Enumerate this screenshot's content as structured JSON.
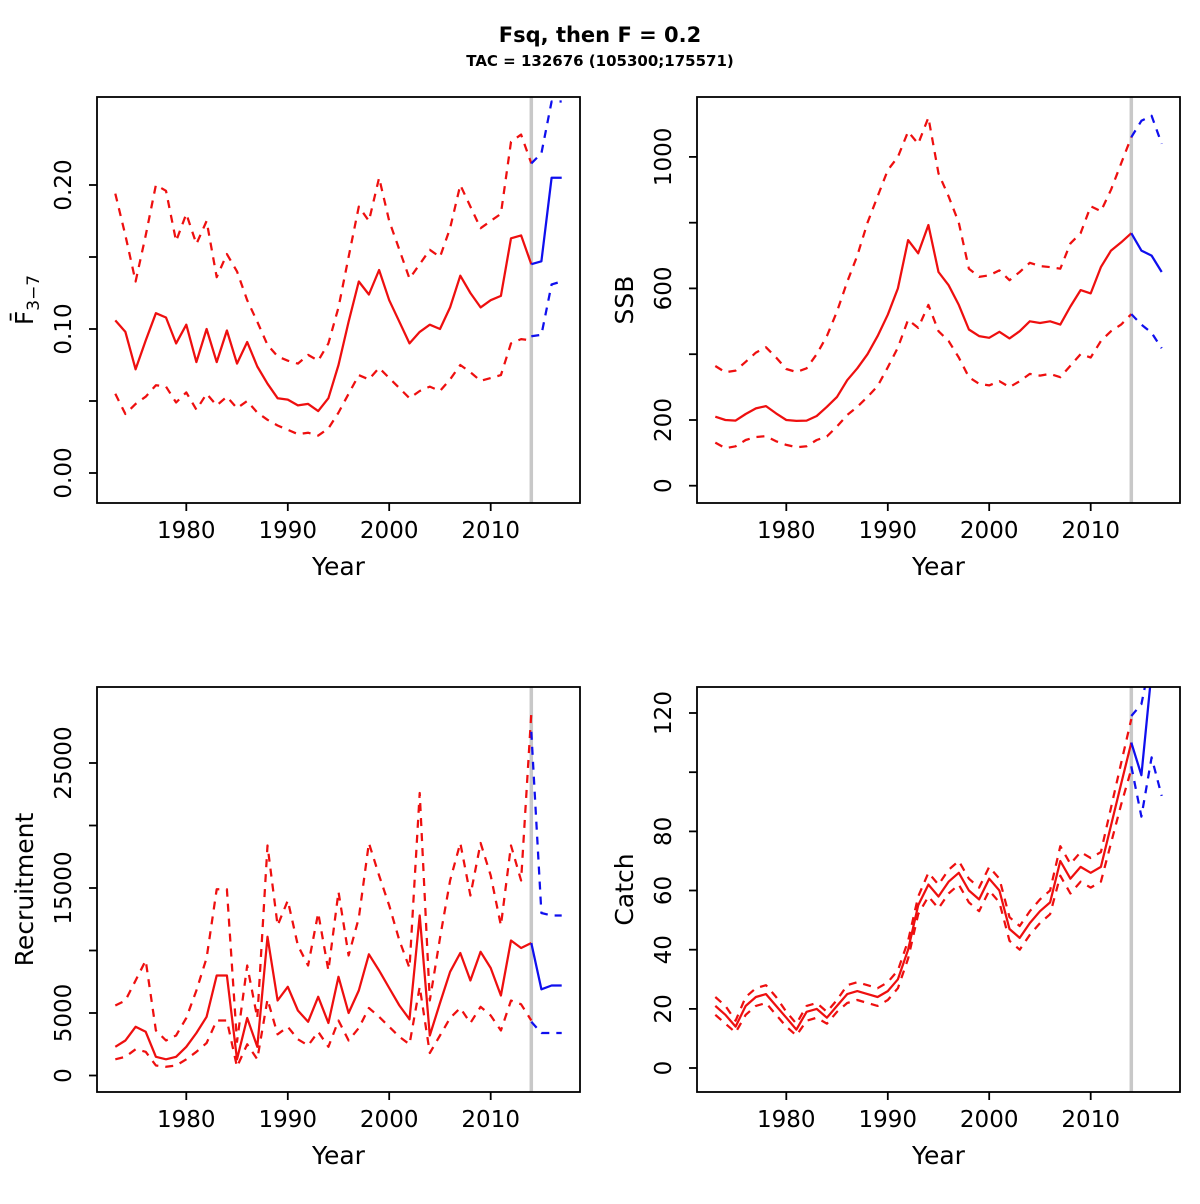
{
  "header": {
    "title": "Fsq, then F = 0.2",
    "subtitle": "TAC = 132676 (105300;175571)"
  },
  "colors": {
    "historical": "#ee0f0f",
    "projection": "#0f0fee",
    "divider": "#c8c8c8",
    "axis": "#000000",
    "background": "#ffffff"
  },
  "chart_data": [
    {
      "name": "fbar",
      "type": "line",
      "ylabel": "F̄",
      "ylabel_sub": "3−7",
      "xlabel": "Year",
      "x_ticks": [
        1980,
        1990,
        2000,
        2010
      ],
      "xlim": [
        1971.2,
        2018.8
      ],
      "ylim": [
        -0.0208,
        0.2611
      ],
      "divider_year": 2014,
      "grid": false,
      "legend": "none",
      "y_ticks": [
        {
          "v": 0.0,
          "label": "0.00"
        },
        {
          "v": 0.05,
          "label": ""
        },
        {
          "v": 0.1,
          "label": "0.10"
        },
        {
          "v": 0.15,
          "label": ""
        },
        {
          "v": 0.2,
          "label": "0.20"
        }
      ],
      "series": [
        {
          "name": "fbar-median-historical",
          "role": "median",
          "period": "historical",
          "style": "solid",
          "color": "historical",
          "start_year": 1973,
          "values": [
            0.106,
            0.098,
            0.072,
            0.092,
            0.111,
            0.108,
            0.09,
            0.103,
            0.077,
            0.1,
            0.077,
            0.099,
            0.076,
            0.091,
            0.074,
            0.062,
            0.052,
            0.051,
            0.047,
            0.048,
            0.043,
            0.052,
            0.075,
            0.105,
            0.133,
            0.124,
            0.141,
            0.12,
            0.105,
            0.09,
            0.098,
            0.103,
            0.1,
            0.115,
            0.137,
            0.125,
            0.115,
            0.12,
            0.123,
            0.163,
            0.165,
            0.145
          ]
        },
        {
          "name": "fbar-upper-ci-historical",
          "role": "upper-ci",
          "period": "historical",
          "style": "dashed",
          "color": "historical",
          "start_year": 1973,
          "values": [
            0.194,
            0.165,
            0.133,
            0.165,
            0.2,
            0.196,
            0.161,
            0.18,
            0.159,
            0.175,
            0.136,
            0.152,
            0.14,
            0.12,
            0.105,
            0.089,
            0.081,
            0.078,
            0.076,
            0.082,
            0.078,
            0.09,
            0.115,
            0.15,
            0.185,
            0.175,
            0.205,
            0.175,
            0.155,
            0.135,
            0.145,
            0.155,
            0.15,
            0.17,
            0.2,
            0.185,
            0.17,
            0.175,
            0.18,
            0.23,
            0.235,
            0.215
          ]
        },
        {
          "name": "fbar-lower-ci-historical",
          "role": "lower-ci",
          "period": "historical",
          "style": "dashed",
          "color": "historical",
          "start_year": 1973,
          "values": [
            0.055,
            0.041,
            0.048,
            0.053,
            0.061,
            0.06,
            0.049,
            0.056,
            0.044,
            0.055,
            0.047,
            0.053,
            0.045,
            0.05,
            0.042,
            0.037,
            0.033,
            0.03,
            0.027,
            0.028,
            0.026,
            0.031,
            0.042,
            0.055,
            0.068,
            0.065,
            0.073,
            0.066,
            0.059,
            0.052,
            0.057,
            0.06,
            0.057,
            0.065,
            0.075,
            0.07,
            0.064,
            0.066,
            0.068,
            0.09,
            0.093,
            0.092
          ]
        },
        {
          "name": "fbar-median-projection",
          "role": "median",
          "period": "projection",
          "style": "solid",
          "color": "projection",
          "start_year": 2014,
          "values": [
            0.145,
            0.147,
            0.205,
            0.205
          ]
        },
        {
          "name": "fbar-upper-ci-projection",
          "role": "upper-ci",
          "period": "projection",
          "style": "dashed",
          "color": "projection",
          "start_year": 2014,
          "values": [
            0.215,
            0.222,
            0.258,
            0.258
          ]
        },
        {
          "name": "fbar-lower-ci-projection",
          "role": "lower-ci",
          "period": "projection",
          "style": "dashed",
          "color": "projection",
          "start_year": 2014,
          "values": [
            0.095,
            0.096,
            0.131,
            0.133
          ]
        }
      ]
    },
    {
      "name": "ssb",
      "type": "line",
      "ylabel": "SSB",
      "xlabel": "Year",
      "x_ticks": [
        1980,
        1990,
        2000,
        2010
      ],
      "xlim": [
        1971.2,
        2018.8
      ],
      "ylim": [
        -52.6,
        1182.3
      ],
      "divider_year": 2014,
      "grid": false,
      "legend": "none",
      "y_ticks": [
        {
          "v": 0,
          "label": "0"
        },
        {
          "v": 200,
          "label": "200"
        },
        {
          "v": 400,
          "label": ""
        },
        {
          "v": 600,
          "label": "600"
        },
        {
          "v": 800,
          "label": ""
        },
        {
          "v": 1000,
          "label": "1000"
        }
      ],
      "series": [
        {
          "name": "ssb-median-historical",
          "role": "median",
          "period": "historical",
          "style": "solid",
          "color": "historical",
          "start_year": 1973,
          "values": [
            210,
            200,
            198,
            218,
            235,
            242,
            220,
            200,
            197,
            198,
            212,
            240,
            270,
            321,
            357,
            400,
            455,
            520,
            600,
            747,
            707,
            793,
            650,
            610,
            550,
            475,
            455,
            450,
            468,
            448,
            470,
            500,
            495,
            500,
            490,
            545,
            595,
            585,
            665,
            715,
            740,
            768
          ]
        },
        {
          "name": "ssb-upper-ci-historical",
          "role": "upper-ci",
          "period": "historical",
          "style": "dashed",
          "color": "historical",
          "start_year": 1973,
          "values": [
            364,
            345,
            350,
            377,
            405,
            421,
            390,
            355,
            346,
            357,
            400,
            455,
            530,
            620,
            700,
            800,
            880,
            960,
            1000,
            1077,
            1040,
            1120,
            950,
            880,
            800,
            660,
            635,
            640,
            655,
            625,
            650,
            678,
            668,
            665,
            660,
            737,
            768,
            850,
            835,
            900,
            980,
            1060
          ]
        },
        {
          "name": "ssb-lower-ci-historical",
          "role": "lower-ci",
          "period": "historical",
          "style": "dashed",
          "color": "historical",
          "start_year": 1973,
          "values": [
            131,
            114,
            120,
            139,
            148,
            151,
            135,
            124,
            117,
            120,
            139,
            150,
            180,
            215,
            240,
            270,
            303,
            360,
            420,
            505,
            480,
            550,
            470,
            440,
            390,
            330,
            310,
            305,
            318,
            300,
            318,
            340,
            335,
            340,
            330,
            365,
            400,
            390,
            440,
            470,
            490,
            522
          ]
        },
        {
          "name": "ssb-median-projection",
          "role": "median",
          "period": "projection",
          "style": "solid",
          "color": "projection",
          "start_year": 2014,
          "values": [
            768,
            715,
            700,
            650
          ]
        },
        {
          "name": "ssb-upper-ci-projection",
          "role": "upper-ci",
          "period": "projection",
          "style": "dashed",
          "color": "projection",
          "start_year": 2014,
          "values": [
            1060,
            1110,
            1125,
            1040
          ]
        },
        {
          "name": "ssb-lower-ci-projection",
          "role": "lower-ci",
          "period": "projection",
          "style": "dashed",
          "color": "projection",
          "start_year": 2014,
          "values": [
            522,
            490,
            465,
            418
          ]
        }
      ]
    },
    {
      "name": "recruitment",
      "type": "line",
      "ylabel": "Recruitment",
      "xlabel": "Year",
      "x_ticks": [
        1980,
        1990,
        2000,
        2010
      ],
      "xlim": [
        1971.2,
        2018.8
      ],
      "ylim": [
        -1320,
        31080
      ],
      "divider_year": 2014,
      "grid": false,
      "legend": "none",
      "y_ticks": [
        {
          "v": 0,
          "label": "0"
        },
        {
          "v": 5000,
          "label": "5000"
        },
        {
          "v": 10000,
          "label": ""
        },
        {
          "v": 15000,
          "label": "15000"
        },
        {
          "v": 20000,
          "label": ""
        },
        {
          "v": 25000,
          "label": "25000"
        }
      ],
      "series": [
        {
          "name": "recruitment-median-historical",
          "role": "median",
          "period": "historical",
          "style": "solid",
          "color": "historical",
          "start_year": 1973,
          "values": [
            2300,
            2800,
            3900,
            3500,
            1500,
            1300,
            1500,
            2300,
            3400,
            4700,
            8000,
            8000,
            1300,
            4600,
            2300,
            11100,
            6000,
            7100,
            5200,
            4300,
            6300,
            4200,
            7900,
            5000,
            6800,
            9700,
            8400,
            7000,
            5600,
            4500,
            12800,
            3200,
            5800,
            8300,
            9800,
            7600,
            9900,
            8600,
            6400,
            10800,
            10200,
            10600
          ]
        },
        {
          "name": "recruitment-upper-ci-historical",
          "role": "upper-ci",
          "period": "historical",
          "style": "dashed",
          "color": "historical",
          "start_year": 1973,
          "values": [
            5600,
            6000,
            7600,
            9200,
            3600,
            2800,
            3200,
            4600,
            6800,
            9400,
            14900,
            14900,
            2700,
            8800,
            4600,
            18400,
            12000,
            14000,
            10400,
            8800,
            13000,
            8400,
            14700,
            9600,
            12600,
            18600,
            16000,
            13600,
            10800,
            8600,
            22600,
            6000,
            11000,
            15600,
            18600,
            14400,
            18600,
            16000,
            12000,
            18400,
            15600,
            29000
          ]
        },
        {
          "name": "recruitment-lower-ci-historical",
          "role": "lower-ci",
          "period": "historical",
          "style": "dashed",
          "color": "historical",
          "start_year": 1973,
          "values": [
            1300,
            1500,
            2100,
            1900,
            800,
            700,
            800,
            1300,
            1900,
            2600,
            4400,
            4400,
            700,
            2500,
            1300,
            6100,
            3300,
            3900,
            2900,
            2400,
            3500,
            2300,
            4400,
            2800,
            3800,
            5400,
            4700,
            3900,
            3100,
            2500,
            7100,
            1800,
            3200,
            4600,
            5400,
            4200,
            5500,
            4800,
            3600,
            6000,
            5700,
            4400
          ]
        },
        {
          "name": "recruitment-median-projection",
          "role": "median",
          "period": "projection",
          "style": "solid",
          "color": "projection",
          "start_year": 2014,
          "values": [
            10600,
            6900,
            7200,
            7200
          ]
        },
        {
          "name": "recruitment-upper-ci-projection",
          "role": "upper-ci",
          "period": "projection",
          "style": "dashed",
          "color": "projection",
          "start_year": 2014,
          "values": [
            27500,
            13000,
            12800,
            12800
          ]
        },
        {
          "name": "recruitment-lower-ci-projection",
          "role": "lower-ci",
          "period": "projection",
          "style": "dashed",
          "color": "projection",
          "start_year": 2014,
          "values": [
            4300,
            3400,
            3400,
            3400
          ]
        }
      ]
    },
    {
      "name": "catch",
      "type": "line",
      "ylabel": "Catch",
      "xlabel": "Year",
      "x_ticks": [
        1980,
        1990,
        2000,
        2010
      ],
      "xlim": [
        1971.2,
        2018.8
      ],
      "ylim": [
        -8.1,
        128.8
      ],
      "divider_year": 2014,
      "grid": false,
      "legend": "none",
      "y_ticks": [
        {
          "v": 0,
          "label": "0"
        },
        {
          "v": 20,
          "label": "20"
        },
        {
          "v": 40,
          "label": "40"
        },
        {
          "v": 60,
          "label": "60"
        },
        {
          "v": 80,
          "label": "80"
        },
        {
          "v": 100,
          "label": ""
        },
        {
          "v": 120,
          "label": "120"
        }
      ],
      "series": [
        {
          "name": "catch-median-historical",
          "role": "median",
          "period": "historical",
          "style": "solid",
          "color": "historical",
          "start_year": 1973,
          "values": [
            21,
            18,
            14,
            21,
            24,
            25,
            21,
            17,
            13,
            19,
            20,
            17,
            21,
            25,
            26,
            25,
            24,
            26,
            30,
            40,
            55,
            62,
            58,
            63,
            66,
            60,
            57,
            64,
            60,
            47,
            44,
            49,
            53,
            56,
            70,
            64,
            68,
            66,
            68,
            82,
            96,
            110
          ]
        },
        {
          "name": "catch-upper-ci-historical",
          "role": "upper-ci",
          "period": "historical",
          "style": "dashed",
          "color": "historical",
          "start_year": 1973,
          "values": [
            24,
            21,
            16,
            24,
            27,
            28,
            24,
            19,
            15,
            21,
            22,
            19,
            23,
            28,
            29,
            28,
            27,
            29,
            33,
            43,
            58,
            66,
            62,
            67,
            70,
            64,
            61,
            68,
            64,
            51,
            48,
            53,
            57,
            60,
            75,
            69,
            73,
            71,
            73,
            88,
            103,
            118
          ]
        },
        {
          "name": "catch-lower-ci-historical",
          "role": "lower-ci",
          "period": "historical",
          "style": "dashed",
          "color": "historical",
          "start_year": 1973,
          "values": [
            18,
            15,
            12,
            18,
            21,
            22,
            18,
            14,
            11,
            16,
            17,
            15,
            19,
            22,
            23,
            22,
            21,
            23,
            27,
            37,
            52,
            58,
            54,
            59,
            62,
            56,
            53,
            60,
            56,
            43,
            40,
            45,
            49,
            52,
            65,
            59,
            63,
            61,
            63,
            76,
            89,
            101
          ]
        },
        {
          "name": "catch-median-projection",
          "role": "median",
          "period": "projection",
          "style": "solid",
          "color": "projection",
          "start_year": 2014,
          "values": [
            110,
            99,
            134,
            134
          ]
        },
        {
          "name": "catch-upper-ci-projection",
          "role": "upper-ci",
          "period": "projection",
          "style": "dashed",
          "color": "projection",
          "start_year": 2014,
          "values": [
            119,
            123,
            140,
            138
          ]
        },
        {
          "name": "catch-lower-ci-projection",
          "role": "lower-ci",
          "period": "projection",
          "style": "dashed",
          "color": "projection",
          "start_year": 2014,
          "values": [
            102,
            85,
            105,
            92
          ]
        }
      ]
    }
  ]
}
